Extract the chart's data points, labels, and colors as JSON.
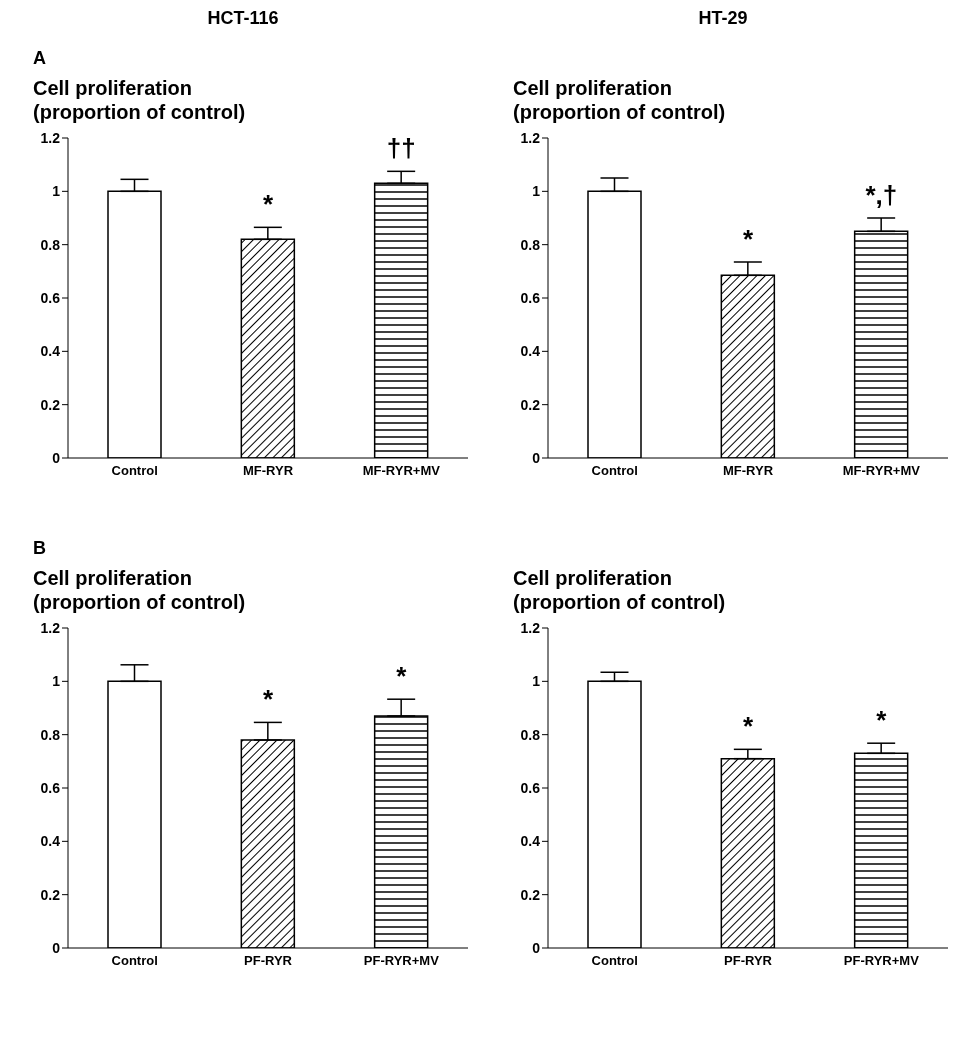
{
  "chart_data": [
    {
      "type": "bar",
      "title": "HCT-116",
      "annotations": [
        "A",
        {
          "text": "*",
          "x": "MF-RYR",
          "y": 0.82
        },
        {
          "text": "††",
          "x": "MF-RYR+MV",
          "y": 1.03
        }
      ],
      "ylabel": "Cell proliferation\n(proportion of control)",
      "categories": [
        "Control",
        "MF-RYR",
        "MF-RYR+MV"
      ],
      "values": [
        1.0,
        0.82,
        1.03
      ],
      "errors": [
        0.045,
        0.045,
        0.045
      ],
      "colors": [
        "#ffffff",
        "#000000",
        "#000000"
      ],
      "ylim": [
        0,
        1.2
      ],
      "yticks": [
        0,
        0.2,
        0.4,
        0.6,
        0.8,
        1,
        1.2
      ],
      "grid": false,
      "legend": false
    },
    {
      "type": "bar",
      "title": "HT-29",
      "annotations": [
        {
          "text": "*",
          "x": "MF-RYR",
          "y": 0.685
        },
        {
          "text": "*,†",
          "x": "MF-RYR+MV",
          "y": 0.85
        }
      ],
      "ylabel": "Cell proliferation\n(proportion of control)",
      "categories": [
        "Control",
        "MF-RYR",
        "MF-RYR+MV"
      ],
      "values": [
        1.0,
        0.685,
        0.85
      ],
      "errors": [
        0.05,
        0.05,
        0.05
      ],
      "colors": [
        "#ffffff",
        "#000000",
        "#000000"
      ],
      "ylim": [
        0,
        1.2
      ],
      "yticks": [
        0,
        0.2,
        0.4,
        0.6,
        0.8,
        1,
        1.2
      ],
      "grid": false,
      "legend": false
    },
    {
      "type": "bar",
      "annotations": [
        "B",
        {
          "text": "*",
          "x": "PF-RYR",
          "y": 0.78
        },
        {
          "text": "*",
          "x": "PF-RYR+MV",
          "y": 0.87
        }
      ],
      "ylabel": "Cell proliferation\n(proportion of control)",
      "categories": [
        "Control",
        "PF-RYR",
        "PF-RYR+MV"
      ],
      "values": [
        1.0,
        0.78,
        0.87
      ],
      "errors": [
        0.062,
        0.066,
        0.063
      ],
      "colors": [
        "#ffffff",
        "#000000",
        "#000000"
      ],
      "ylim": [
        0,
        1.2
      ],
      "yticks": [
        0,
        0.2,
        0.4,
        0.6,
        0.8,
        1,
        1.2
      ],
      "grid": false,
      "legend": false
    },
    {
      "type": "bar",
      "annotations": [
        {
          "text": "*",
          "x": "PF-RYR",
          "y": 0.71
        },
        {
          "text": "*",
          "x": "PF-RYR+MV",
          "y": 0.73
        }
      ],
      "ylabel": "Cell proliferation\n(proportion of control)",
      "categories": [
        "Control",
        "PF-RYR",
        "PF-RYR+MV"
      ],
      "values": [
        1.0,
        0.71,
        0.73
      ],
      "errors": [
        0.034,
        0.035,
        0.038
      ],
      "colors": [
        "#ffffff",
        "#000000",
        "#000000"
      ],
      "ylim": [
        0,
        1.2
      ],
      "yticks": [
        0,
        0.2,
        0.4,
        0.6,
        0.8,
        1,
        1.2
      ],
      "grid": false,
      "legend": false
    }
  ]
}
